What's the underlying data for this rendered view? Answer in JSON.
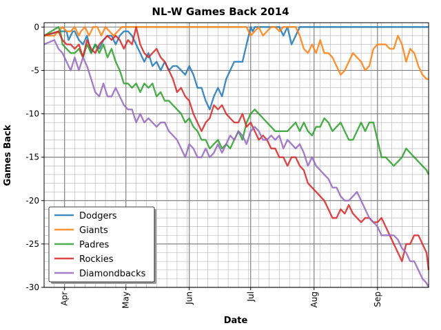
{
  "chart_data": {
    "type": "line",
    "title": "NL-W Games Back 2014",
    "xlabel": "Date",
    "ylabel": "Games Back",
    "ylim": [
      -30,
      0.5
    ],
    "xlim": [
      1,
      189
    ],
    "x_axis_start_date": "2014-03-22",
    "x_ticks": [
      {
        "label": "Apr",
        "x": 11
      },
      {
        "label": "May",
        "x": 41
      },
      {
        "label": "Jun",
        "x": 72
      },
      {
        "label": "Jul",
        "x": 102
      },
      {
        "label": "Aug",
        "x": 133
      },
      {
        "label": "Sep",
        "x": 164
      }
    ],
    "y_ticks": [
      0,
      -5,
      -10,
      -15,
      -20,
      -25,
      -30
    ],
    "grid": true,
    "legend_position": "lower-left",
    "series": [
      {
        "name": "Dodgers",
        "color": "#1f77b4",
        "x": [
          1,
          9,
          12,
          13,
          15,
          16,
          18,
          20,
          22,
          24,
          26,
          28,
          30,
          32,
          34,
          36,
          38,
          40,
          42,
          44,
          46,
          48,
          50,
          52,
          54,
          56,
          58,
          60,
          62,
          64,
          66,
          68,
          70,
          72,
          74,
          76,
          78,
          80,
          82,
          84,
          86,
          88,
          90,
          92,
          94,
          96,
          98,
          100,
          101,
          102,
          103,
          104,
          106,
          108,
          110,
          112,
          114,
          116,
          118,
          120,
          122,
          124,
          126,
          128,
          130,
          140,
          150,
          160,
          170,
          180,
          189
        ],
        "y": [
          -1,
          -0.5,
          -0.5,
          -1.5,
          -0.5,
          -0.5,
          -1.5,
          -2,
          -1,
          -3,
          -2,
          -2.5,
          -1.5,
          -1,
          -1,
          -2,
          -1,
          -0.5,
          -0.5,
          -1,
          -2,
          -3,
          -4,
          -3,
          -4.5,
          -4,
          -5,
          -4,
          -5,
          -4.5,
          -4.5,
          -5,
          -5.5,
          -4.5,
          -5.5,
          -7,
          -7,
          -8.5,
          -9.5,
          -8,
          -7,
          -8,
          -6,
          -5,
          -4,
          -4,
          -4,
          -2,
          -1,
          0,
          -0.5,
          0,
          0,
          0,
          0,
          0,
          0,
          0,
          -1,
          0,
          -2,
          -1,
          0,
          0,
          0,
          0,
          0,
          0,
          0,
          0,
          0
        ]
      },
      {
        "name": "Giants",
        "color": "#ff7f0e",
        "x": [
          1,
          6,
          8,
          10,
          12,
          14,
          16,
          18,
          19,
          21,
          23,
          25,
          27,
          29,
          31,
          33,
          35,
          37,
          39,
          41,
          44,
          50,
          60,
          70,
          80,
          90,
          100,
          102,
          104,
          106,
          108,
          110,
          112,
          114,
          116,
          118,
          120,
          122,
          124,
          126,
          128,
          130,
          132,
          134,
          136,
          138,
          140,
          142,
          144,
          146,
          148,
          150,
          152,
          154,
          156,
          158,
          160,
          162,
          164,
          166,
          168,
          170,
          172,
          174,
          176,
          178,
          180,
          182,
          184,
          186,
          188,
          189
        ],
        "y": [
          -1,
          -1,
          -0.5,
          0,
          -0.5,
          -0.5,
          0,
          -1,
          -0.5,
          0,
          -1,
          0,
          0,
          -1,
          0,
          -0.5,
          -1,
          -0.5,
          0,
          0,
          0,
          0,
          0,
          0,
          0,
          0,
          0,
          -1,
          -0.5,
          0,
          -1,
          -0.5,
          0,
          0,
          -0.5,
          0,
          0,
          0,
          0,
          -1,
          -2.5,
          -3,
          -2,
          -3,
          -1.5,
          -3,
          -3,
          -3.5,
          -4.5,
          -5.5,
          -5,
          -4,
          -3,
          -3.5,
          -4,
          -5,
          -4.5,
          -2.5,
          -2,
          -2,
          -2,
          -2.5,
          -2.5,
          -1,
          -2,
          -4,
          -2.5,
          -3,
          -4.5,
          -5.5,
          -6,
          -6
        ]
      },
      {
        "name": "Padres",
        "color": "#2ca02c",
        "x": [
          1,
          8,
          9,
          10,
          12,
          14,
          16,
          18,
          20,
          22,
          24,
          26,
          28,
          30,
          32,
          34,
          36,
          38,
          40,
          42,
          44,
          46,
          48,
          50,
          52,
          54,
          56,
          58,
          60,
          62,
          64,
          66,
          68,
          70,
          72,
          74,
          76,
          78,
          80,
          82,
          84,
          86,
          88,
          90,
          92,
          94,
          96,
          98,
          100,
          102,
          104,
          106,
          108,
          110,
          112,
          114,
          116,
          118,
          120,
          122,
          124,
          126,
          128,
          130,
          132,
          134,
          136,
          138,
          140,
          142,
          144,
          146,
          148,
          150,
          152,
          154,
          156,
          158,
          160,
          162,
          164,
          166,
          168,
          170,
          172,
          174,
          176,
          178,
          180,
          182,
          184,
          186,
          188,
          189
        ],
        "y": [
          -1,
          0,
          -0.5,
          -2,
          -2.5,
          -3,
          -3,
          -2.5,
          -3.5,
          -2,
          -3,
          -2,
          -3,
          -2,
          -3.5,
          -2.5,
          -4,
          -5,
          -6.5,
          -6.5,
          -7,
          -6.5,
          -7.5,
          -6.5,
          -7,
          -6.5,
          -8,
          -7.5,
          -8.5,
          -8.5,
          -9,
          -9.5,
          -10,
          -11,
          -10.5,
          -11.5,
          -12,
          -13,
          -13,
          -14,
          -13.5,
          -13,
          -14,
          -13.5,
          -14,
          -13,
          -12,
          -13,
          -11,
          -10,
          -9.5,
          -10,
          -10.5,
          -11,
          -11.5,
          -12,
          -12,
          -12,
          -12,
          -11.5,
          -11,
          -12,
          -11,
          -12,
          -12.5,
          -11.5,
          -11.5,
          -10.5,
          -11,
          -12,
          -11.5,
          -11,
          -12,
          -13,
          -13,
          -12,
          -11,
          -12,
          -11,
          -11,
          -13,
          -15,
          -15,
          -15.5,
          -16,
          -15.5,
          -15,
          -14,
          -14.5,
          -15,
          -15.5,
          -16,
          -16.5,
          -17
        ]
      },
      {
        "name": "Rockies",
        "color": "#d62728",
        "x": [
          1,
          8,
          10,
          12,
          14,
          16,
          18,
          20,
          22,
          24,
          26,
          28,
          30,
          32,
          34,
          36,
          38,
          40,
          42,
          44,
          46,
          48,
          50,
          52,
          54,
          56,
          58,
          60,
          62,
          64,
          66,
          68,
          70,
          72,
          74,
          76,
          78,
          80,
          82,
          84,
          86,
          88,
          90,
          92,
          94,
          96,
          98,
          100,
          102,
          104,
          106,
          108,
          110,
          112,
          114,
          116,
          118,
          120,
          122,
          124,
          126,
          128,
          130,
          132,
          134,
          136,
          138,
          140,
          142,
          144,
          146,
          148,
          150,
          152,
          154,
          156,
          158,
          160,
          162,
          164,
          166,
          168,
          170,
          172,
          174,
          176,
          178,
          180,
          182,
          184,
          186,
          188,
          189
        ],
        "y": [
          -1,
          -0.5,
          -1.5,
          -2,
          -2,
          -2.5,
          -2,
          -3.5,
          -1.5,
          -2.5,
          -3,
          -2,
          -1.5,
          -1,
          -1.5,
          -1,
          -1.5,
          -2.5,
          -1.5,
          -2,
          0,
          -2,
          -3,
          -3.5,
          -3,
          -2.5,
          -3.5,
          -4,
          -5,
          -6,
          -7.5,
          -7,
          -8,
          -8.5,
          -10,
          -11,
          -12,
          -11,
          -10.5,
          -9,
          -9.5,
          -9,
          -10,
          -10.5,
          -11,
          -11,
          -10,
          -11.5,
          -11,
          -12,
          -13,
          -12.5,
          -13,
          -14,
          -14,
          -15,
          -15,
          -16,
          -15,
          -15,
          -16,
          -16.5,
          -18,
          -18.5,
          -19,
          -19.5,
          -20,
          -21,
          -22,
          -22,
          -21,
          -21.5,
          -20.5,
          -21.5,
          -22,
          -22.5,
          -22,
          -22,
          -22.5,
          -22.5,
          -22,
          -23,
          -24,
          -25,
          -26,
          -27,
          -25,
          -25,
          -24,
          -24,
          -25,
          -26,
          -28
        ]
      },
      {
        "name": "Diamondbacks",
        "color": "#9467bd",
        "x": [
          1,
          6,
          8,
          10,
          12,
          14,
          16,
          18,
          20,
          22,
          24,
          26,
          28,
          30,
          32,
          34,
          36,
          38,
          40,
          42,
          44,
          46,
          48,
          50,
          52,
          54,
          56,
          58,
          60,
          62,
          64,
          66,
          68,
          70,
          72,
          74,
          76,
          78,
          80,
          82,
          84,
          86,
          88,
          90,
          92,
          94,
          96,
          98,
          100,
          102,
          104,
          106,
          108,
          110,
          112,
          114,
          116,
          118,
          120,
          122,
          124,
          126,
          128,
          130,
          132,
          134,
          136,
          138,
          140,
          142,
          144,
          146,
          148,
          150,
          152,
          154,
          156,
          158,
          160,
          162,
          164,
          166,
          168,
          170,
          172,
          174,
          176,
          178,
          180,
          182,
          184,
          186,
          188,
          189
        ],
        "y": [
          -2,
          -1.5,
          -2.5,
          -3,
          -4,
          -5,
          -3.5,
          -5,
          -3.5,
          -4.5,
          -6,
          -7.5,
          -8,
          -6.5,
          -8,
          -8,
          -7,
          -8,
          -9,
          -9.5,
          -9.5,
          -11,
          -10,
          -11,
          -10.5,
          -11,
          -11.5,
          -11,
          -11,
          -12,
          -12.5,
          -13,
          -14,
          -15,
          -13.5,
          -14,
          -15,
          -15,
          -14,
          -15,
          -14.5,
          -13.5,
          -14.5,
          -13.5,
          -12.5,
          -13,
          -12,
          -12.5,
          -13.5,
          -12,
          -11.5,
          -12,
          -13,
          -13,
          -12.5,
          -13,
          -12.5,
          -14,
          -13,
          -13.5,
          -14,
          -13.5,
          -14.5,
          -16,
          -15,
          -16,
          -16.5,
          -17,
          -17.5,
          -18.5,
          -18.5,
          -19.5,
          -20,
          -20,
          -19.5,
          -19,
          -20,
          -21,
          -22,
          -22.5,
          -23,
          -24,
          -24,
          -24,
          -24,
          -24.5,
          -25.5,
          -26,
          -27,
          -27,
          -28,
          -29,
          -29.5,
          -30
        ]
      }
    ]
  }
}
